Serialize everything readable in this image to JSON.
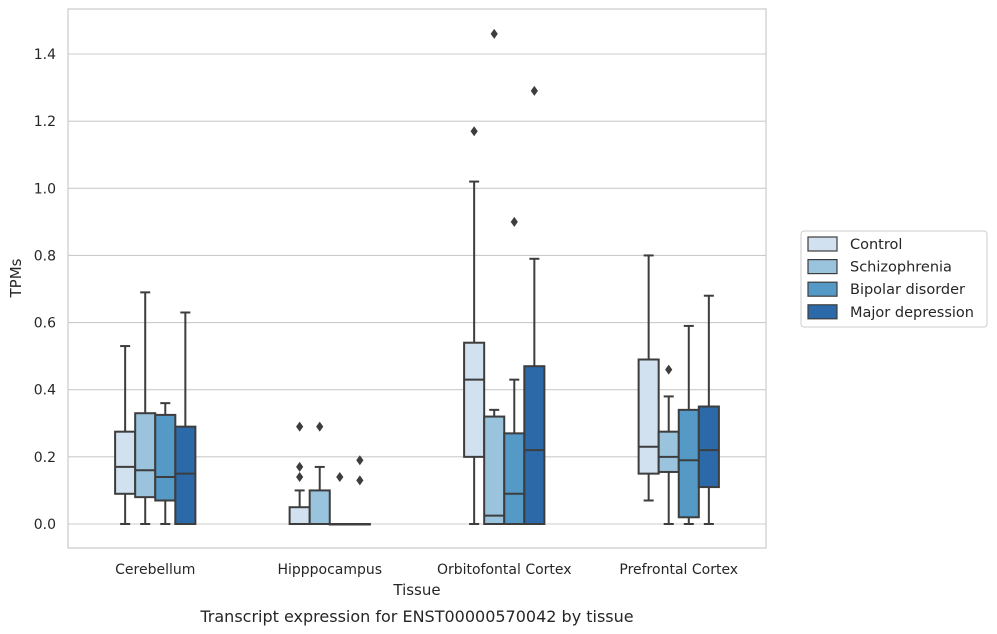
{
  "chart_data": {
    "type": "box",
    "caption": "Transcript expression for ENST00000570042 by tissue",
    "xlabel": "Tissue",
    "ylabel": "TPMs",
    "ylim": [
      -0.07,
      1.54
    ],
    "yticks": [
      0.0,
      0.2,
      0.4,
      0.6,
      0.8,
      1.0,
      1.2,
      1.4
    ],
    "ytick_labels": [
      "0.0",
      "0.2",
      "0.4",
      "0.6",
      "0.8",
      "1.0",
      "1.2",
      "1.4"
    ],
    "grid": true,
    "legend_position": "right",
    "categories": [
      "Cerebellum",
      "Hipppocampus",
      "Orbitofontal Cortex",
      "Prefrontal Cortex"
    ],
    "series": [
      {
        "name": "Control",
        "color": "#d1e1f0",
        "boxes": [
          {
            "min": 0.0,
            "q1": 0.09,
            "median": 0.17,
            "q3": 0.275,
            "max": 0.53,
            "outliers": []
          },
          {
            "min": 0.0,
            "q1": 0.0,
            "median": 0.0,
            "q3": 0.05,
            "max": 0.1,
            "outliers": [
              0.14,
              0.17,
              0.29
            ]
          },
          {
            "min": 0.0,
            "q1": 0.2,
            "median": 0.43,
            "q3": 0.54,
            "max": 1.02,
            "outliers": [
              1.17
            ]
          },
          {
            "min": 0.07,
            "q1": 0.15,
            "median": 0.23,
            "q3": 0.49,
            "max": 0.8,
            "outliers": []
          }
        ]
      },
      {
        "name": "Schizophrenia",
        "color": "#9ac4dd",
        "boxes": [
          {
            "min": 0.0,
            "q1": 0.08,
            "median": 0.16,
            "q3": 0.33,
            "max": 0.69,
            "outliers": []
          },
          {
            "min": 0.0,
            "q1": 0.0,
            "median": 0.0,
            "q3": 0.1,
            "max": 0.17,
            "outliers": [
              0.29
            ]
          },
          {
            "min": 0.0,
            "q1": 0.0,
            "median": 0.025,
            "q3": 0.32,
            "max": 0.34,
            "outliers": [
              1.46
            ]
          },
          {
            "min": 0.0,
            "q1": 0.155,
            "median": 0.2,
            "q3": 0.275,
            "max": 0.38,
            "outliers": [
              0.46
            ]
          }
        ]
      },
      {
        "name": "Bipolar disorder",
        "color": "#5599c7",
        "boxes": [
          {
            "min": 0.0,
            "q1": 0.07,
            "median": 0.14,
            "q3": 0.325,
            "max": 0.36,
            "outliers": []
          },
          {
            "min": 0.0,
            "q1": 0.0,
            "median": 0.0,
            "q3": 0.0,
            "max": 0.0,
            "outliers": [
              0.14
            ]
          },
          {
            "min": 0.0,
            "q1": 0.0,
            "median": 0.09,
            "q3": 0.27,
            "max": 0.43,
            "outliers": [
              0.9
            ]
          },
          {
            "min": 0.0,
            "q1": 0.02,
            "median": 0.19,
            "q3": 0.34,
            "max": 0.59,
            "outliers": []
          }
        ]
      },
      {
        "name": "Major depression",
        "color": "#2b69a8",
        "boxes": [
          {
            "min": 0.0,
            "q1": 0.0,
            "median": 0.15,
            "q3": 0.29,
            "max": 0.63,
            "outliers": []
          },
          {
            "min": 0.0,
            "q1": 0.0,
            "median": 0.0,
            "q3": 0.0,
            "max": 0.0,
            "outliers": [
              0.13,
              0.19
            ]
          },
          {
            "min": 0.0,
            "q1": 0.0,
            "median": 0.22,
            "q3": 0.47,
            "max": 0.79,
            "outliers": [
              1.29
            ]
          },
          {
            "min": 0.0,
            "q1": 0.11,
            "median": 0.22,
            "q3": 0.35,
            "max": 0.68,
            "outliers": []
          }
        ]
      }
    ]
  }
}
